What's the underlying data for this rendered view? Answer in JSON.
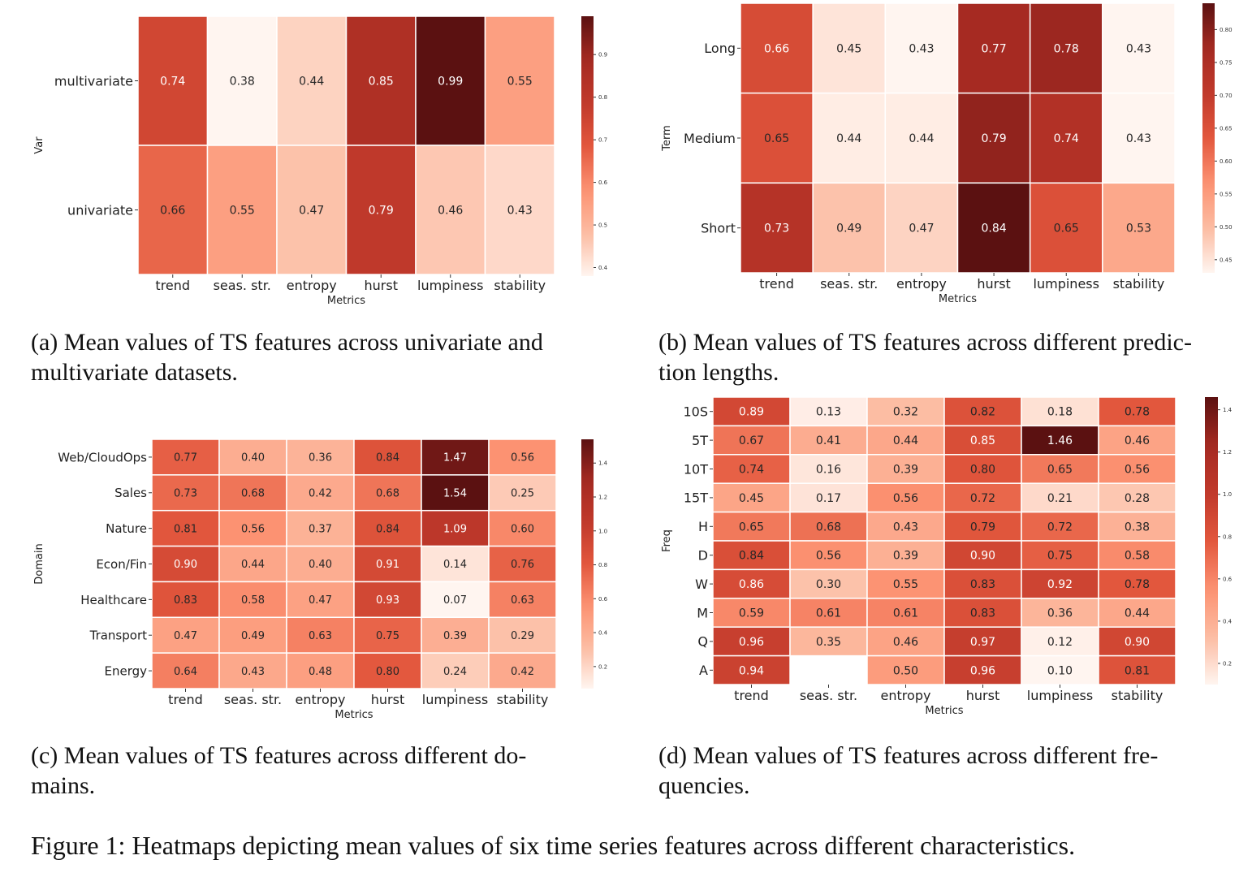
{
  "figure_caption": "Figure 1: Heatmaps depicting mean values of six time series features across different characteristics.",
  "colormap": {
    "name": "Reds",
    "stops": [
      "#fff5f0",
      "#fcbba1",
      "#fc9272",
      "#e2573d",
      "#c0392b",
      "#a52a22",
      "#5b1111"
    ]
  },
  "chart_data": [
    {
      "id": "a",
      "type": "heatmap",
      "caption": "(a) Mean values of TS features across univariate and multivariate datasets.",
      "caption_lines": [
        "(a) Mean values of TS features across univariate and",
        "multivariate datasets."
      ],
      "xlabel": "Metrics",
      "ylabel": "Var",
      "x_categories": [
        "trend",
        "seas. str.",
        "entropy",
        "hurst",
        "lumpiness",
        "stability"
      ],
      "y_categories": [
        "multivariate",
        "univariate"
      ],
      "values": [
        [
          0.74,
          0.38,
          0.44,
          0.85,
          0.99,
          0.55
        ],
        [
          0.66,
          0.55,
          0.47,
          0.79,
          0.46,
          0.43
        ]
      ],
      "colorbar": {
        "range": [
          0.38,
          0.99
        ],
        "ticks": [
          0.4,
          0.5,
          0.6,
          0.7,
          0.8,
          0.9
        ],
        "tick_labels": [
          "0.4",
          "0.5",
          "0.6",
          "0.7",
          "0.8",
          "0.9"
        ]
      }
    },
    {
      "id": "b",
      "type": "heatmap",
      "caption": "(b) Mean values of TS features across different prediction lengths.",
      "caption_lines": [
        "(b) Mean values of TS features across different predic-",
        "tion lengths."
      ],
      "xlabel": "Metrics",
      "ylabel": "Term",
      "x_categories": [
        "trend",
        "seas. str.",
        "entropy",
        "hurst",
        "lumpiness",
        "stability"
      ],
      "y_categories": [
        "Long",
        "Medium",
        "Short"
      ],
      "values": [
        [
          0.66,
          0.45,
          0.43,
          0.77,
          0.78,
          0.43
        ],
        [
          0.65,
          0.44,
          0.44,
          0.79,
          0.74,
          0.43
        ],
        [
          0.73,
          0.49,
          0.47,
          0.84,
          0.65,
          0.53
        ]
      ],
      "colorbar": {
        "range": [
          0.43,
          0.84
        ],
        "ticks": [
          0.45,
          0.5,
          0.55,
          0.6,
          0.65,
          0.7,
          0.75,
          0.8
        ],
        "tick_labels": [
          "0.45",
          "0.50",
          "0.55",
          "0.60",
          "0.65",
          "0.70",
          "0.75",
          "0.80"
        ]
      }
    },
    {
      "id": "c",
      "type": "heatmap",
      "caption": "(c) Mean values of TS features across different domains.",
      "caption_lines": [
        "(c) Mean values of TS features across different do-",
        "mains."
      ],
      "xlabel": "Metrics",
      "ylabel": "Domain",
      "x_categories": [
        "trend",
        "seas. str.",
        "entropy",
        "hurst",
        "lumpiness",
        "stability"
      ],
      "y_categories": [
        "Web/CloudOps",
        "Sales",
        "Nature",
        "Econ/Fin",
        "Healthcare",
        "Transport",
        "Energy"
      ],
      "values": [
        [
          0.77,
          0.4,
          0.36,
          0.84,
          1.47,
          0.56
        ],
        [
          0.73,
          0.68,
          0.42,
          0.68,
          1.54,
          0.25
        ],
        [
          0.81,
          0.56,
          0.37,
          0.84,
          1.09,
          0.6
        ],
        [
          0.9,
          0.44,
          0.4,
          0.91,
          0.14,
          0.76
        ],
        [
          0.83,
          0.58,
          0.47,
          0.93,
          0.07,
          0.63
        ],
        [
          0.47,
          0.49,
          0.63,
          0.75,
          0.39,
          0.29
        ],
        [
          0.64,
          0.43,
          0.48,
          0.8,
          0.24,
          0.42
        ]
      ],
      "colorbar": {
        "range": [
          0.07,
          1.54
        ],
        "ticks": [
          0.2,
          0.4,
          0.6,
          0.8,
          1.0,
          1.2,
          1.4
        ],
        "tick_labels": [
          "0.2",
          "0.4",
          "0.6",
          "0.8",
          "1.0",
          "1.2",
          "1.4"
        ]
      }
    },
    {
      "id": "d",
      "type": "heatmap",
      "caption": "(d) Mean values of TS features across different frequencies.",
      "caption_lines": [
        "(d) Mean values of TS features across different fre-",
        "quencies."
      ],
      "xlabel": "Metrics",
      "ylabel": "Freq",
      "x_categories": [
        "trend",
        "seas. str.",
        "entropy",
        "hurst",
        "lumpiness",
        "stability"
      ],
      "y_categories": [
        "10S",
        "5T",
        "10T",
        "15T",
        "H",
        "D",
        "W",
        "M",
        "Q",
        "A"
      ],
      "values": [
        [
          0.89,
          0.13,
          0.32,
          0.82,
          0.18,
          0.78
        ],
        [
          0.67,
          0.41,
          0.44,
          0.85,
          1.46,
          0.46
        ],
        [
          0.74,
          0.16,
          0.39,
          0.8,
          0.65,
          0.56
        ],
        [
          0.45,
          0.17,
          0.56,
          0.72,
          0.21,
          0.28
        ],
        [
          0.65,
          0.68,
          0.43,
          0.79,
          0.72,
          0.38
        ],
        [
          0.84,
          0.56,
          0.39,
          0.9,
          0.75,
          0.58
        ],
        [
          0.86,
          0.3,
          0.55,
          0.83,
          0.92,
          0.78
        ],
        [
          0.59,
          0.61,
          0.61,
          0.83,
          0.36,
          0.44
        ],
        [
          0.96,
          0.35,
          0.46,
          0.97,
          0.12,
          0.9
        ],
        [
          0.94,
          null,
          0.5,
          0.96,
          0.1,
          0.81
        ]
      ],
      "colorbar": {
        "range": [
          0.1,
          1.46
        ],
        "ticks": [
          0.2,
          0.4,
          0.6,
          0.8,
          1.0,
          1.2,
          1.4
        ],
        "tick_labels": [
          "0.2",
          "0.4",
          "0.6",
          "0.8",
          "1.0",
          "1.2",
          "1.4"
        ]
      }
    }
  ]
}
